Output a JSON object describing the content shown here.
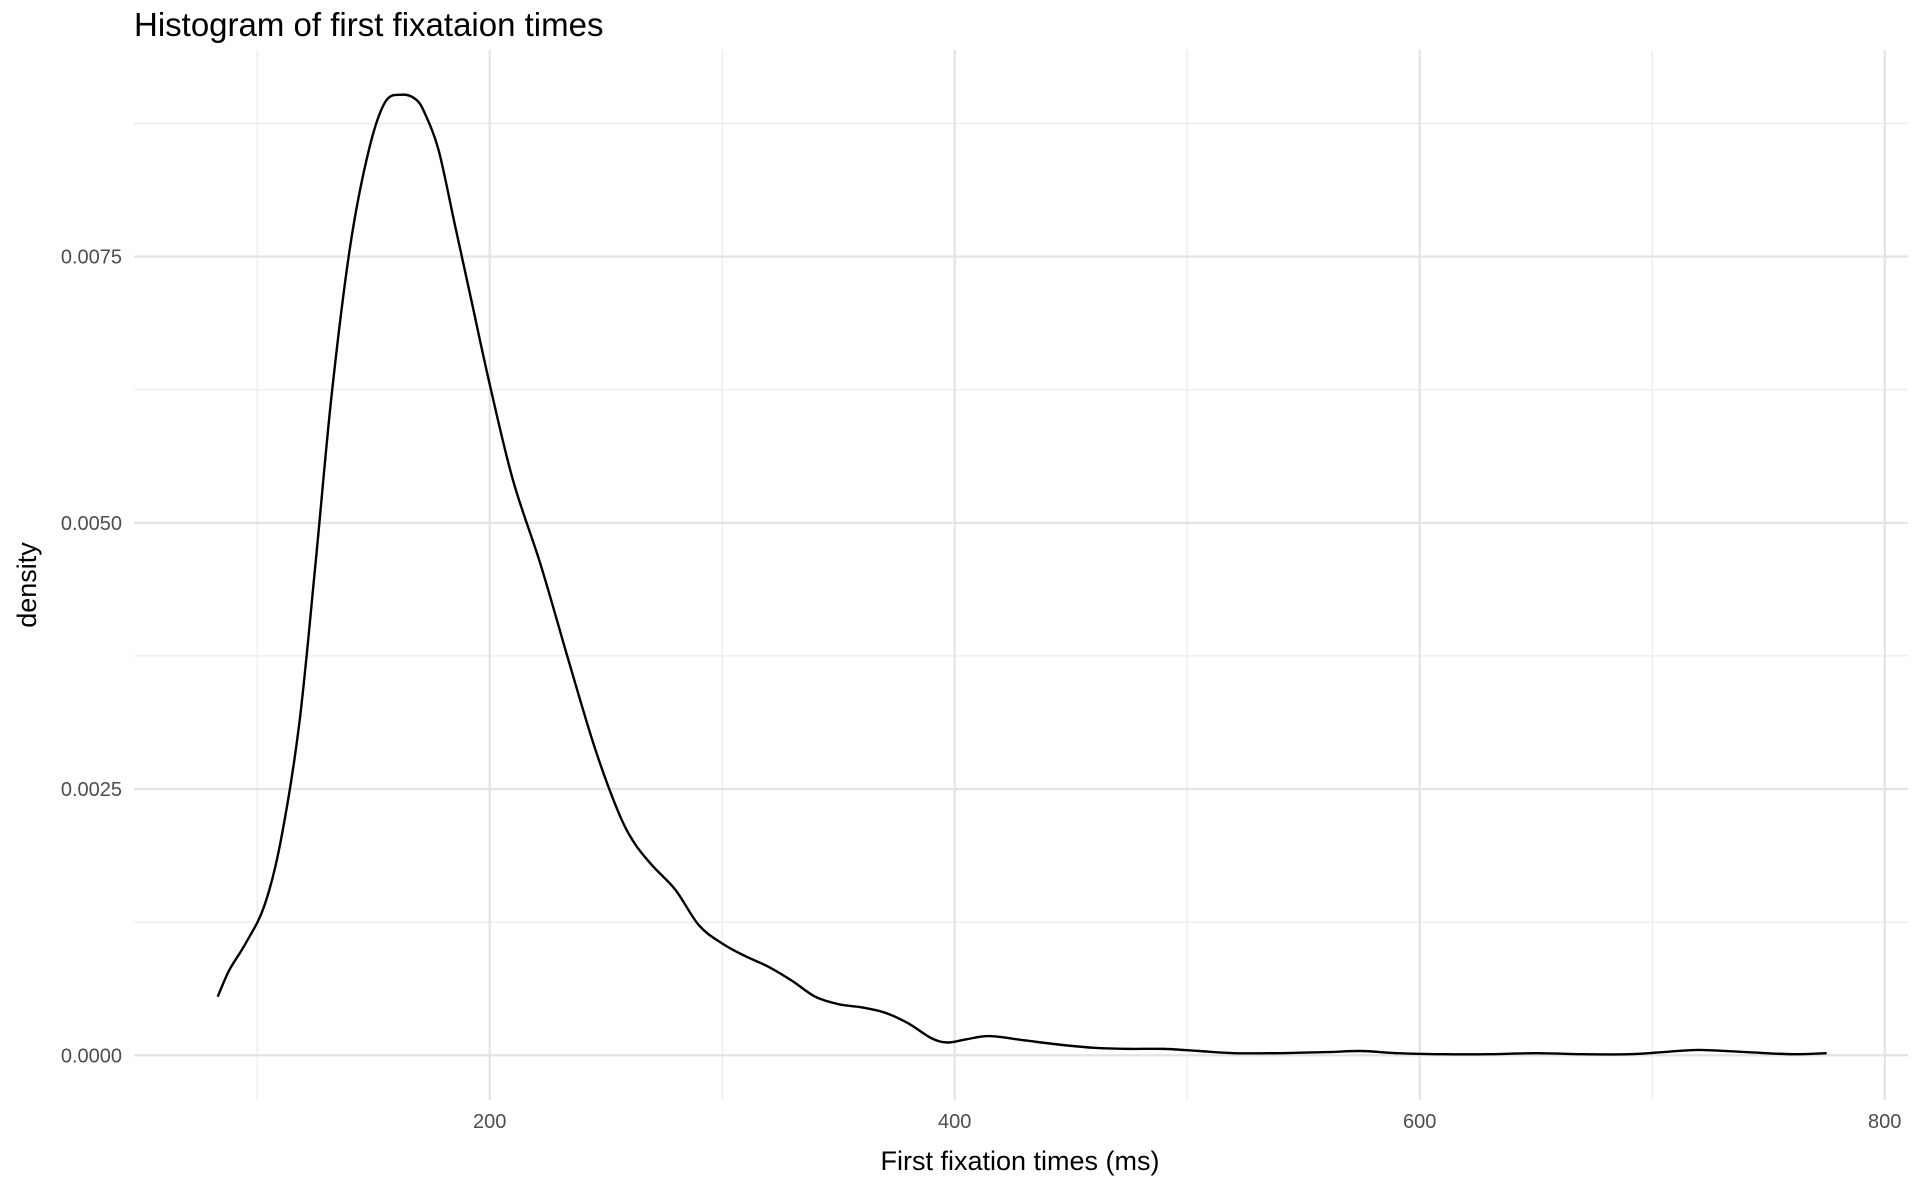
{
  "chart_data": {
    "type": "line",
    "title": "Histogram of first fixataion times",
    "xlabel": "First fixation times (ms)",
    "ylabel": "density",
    "xlim": [
      47,
      810
    ],
    "ylim": [
      -0.00042,
      0.00944
    ],
    "x_major_ticks": [
      200,
      400,
      600,
      800
    ],
    "x_minor_ticks": [
      100,
      300,
      500,
      700
    ],
    "y_major_ticks": [
      0.0,
      0.0025,
      0.005,
      0.0075
    ],
    "y_minor_ticks": [
      0.00125,
      0.00375,
      0.00625,
      0.00875
    ],
    "x_tick_labels": [
      "200",
      "400",
      "600",
      "800"
    ],
    "y_tick_labels": [
      "0.0000",
      "0.0025",
      "0.0050",
      "0.0075"
    ],
    "grid": true,
    "series": [
      {
        "x": [
          83,
          88,
          95,
          103,
          110,
          118,
          125,
          132,
          140,
          148,
          155,
          162,
          168,
          172,
          178,
          185,
          192,
          200,
          210,
          222,
          234,
          245,
          255,
          262,
          270,
          280,
          290,
          300,
          310,
          320,
          330,
          340,
          350,
          360,
          370,
          380,
          390,
          397,
          405,
          415,
          430,
          445,
          460,
          475,
          490,
          505,
          520,
          540,
          560,
          575,
          590,
          610,
          630,
          650,
          670,
          690,
          705,
          720,
          740,
          760,
          775
        ],
        "y": [
          0.00055,
          0.0008,
          0.00105,
          0.0014,
          0.002,
          0.0031,
          0.0046,
          0.0062,
          0.0076,
          0.0085,
          0.00895,
          0.00902,
          0.00898,
          0.00885,
          0.0085,
          0.0078,
          0.0071,
          0.0063,
          0.0054,
          0.0046,
          0.0037,
          0.0029,
          0.0023,
          0.002,
          0.00178,
          0.00155,
          0.00122,
          0.00105,
          0.00093,
          0.00083,
          0.0007,
          0.00055,
          0.00048,
          0.00045,
          0.0004,
          0.0003,
          0.00016,
          0.00012,
          0.00015,
          0.00018,
          0.00014,
          0.0001,
          7e-05,
          6e-05,
          6e-05,
          4e-05,
          2e-05,
          2e-05,
          3e-05,
          4e-05,
          2e-05,
          1e-05,
          1e-05,
          2e-05,
          1e-05,
          1e-05,
          3e-05,
          5e-05,
          3e-05,
          1e-05,
          2e-05
        ],
        "color": "#000000"
      }
    ]
  }
}
